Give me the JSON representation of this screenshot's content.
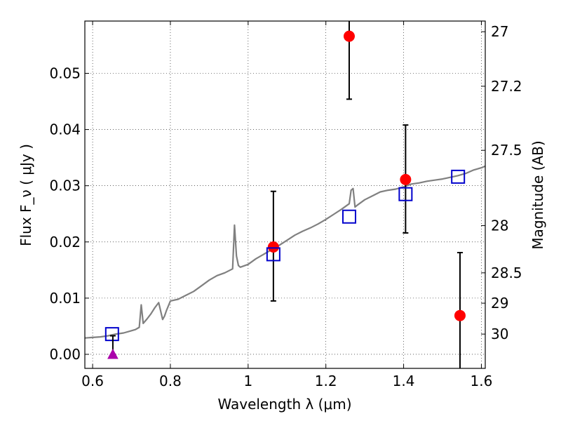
{
  "chart_data": {
    "type": "scatter",
    "xlabel": "Wavelength  λ (μm)",
    "ylabel": "Flux  F_ν  ( μJy )",
    "ylabel_right": "Magnitude (AB)",
    "xlim": [
      0.58,
      1.61
    ],
    "ylim": [
      -0.0025,
      0.0593
    ],
    "grid": true,
    "x_ticks": [
      {
        "value": 0.6,
        "label": "0.6"
      },
      {
        "value": 0.8,
        "label": "0.8"
      },
      {
        "value": 1.0,
        "label": "1"
      },
      {
        "value": 1.2,
        "label": "1.2"
      },
      {
        "value": 1.4,
        "label": "1.4"
      },
      {
        "value": 1.6,
        "label": "1.6"
      }
    ],
    "y_ticks": [
      {
        "value": 0.0,
        "label": "0.00"
      },
      {
        "value": 0.01,
        "label": "0.01"
      },
      {
        "value": 0.02,
        "label": "0.02"
      },
      {
        "value": 0.03,
        "label": "0.03"
      },
      {
        "value": 0.04,
        "label": "0.04"
      },
      {
        "value": 0.05,
        "label": "0.05"
      }
    ],
    "right_ticks": [
      {
        "flux": 0.0574,
        "label": "27"
      },
      {
        "flux": 0.0477,
        "label": "27.2"
      },
      {
        "flux": 0.0363,
        "label": "27.5"
      },
      {
        "flux": 0.0229,
        "label": "28"
      },
      {
        "flux": 0.0145,
        "label": "28.5"
      },
      {
        "flux": 0.0091,
        "label": "29"
      },
      {
        "flux": 0.0036,
        "label": "30"
      }
    ],
    "series": [
      {
        "kind": "line",
        "color": "#808080",
        "x": [
          0.58,
          0.6,
          0.62,
          0.64,
          0.66,
          0.68,
          0.7,
          0.71,
          0.72,
          0.725,
          0.73,
          0.74,
          0.75,
          0.76,
          0.77,
          0.78,
          0.785,
          0.79,
          0.8,
          0.82,
          0.84,
          0.86,
          0.88,
          0.9,
          0.92,
          0.94,
          0.96,
          0.965,
          0.97,
          0.975,
          0.98,
          1.0,
          1.02,
          1.04,
          1.06,
          1.08,
          1.1,
          1.12,
          1.14,
          1.16,
          1.18,
          1.2,
          1.22,
          1.24,
          1.26,
          1.265,
          1.27,
          1.275,
          1.28,
          1.3,
          1.32,
          1.34,
          1.36,
          1.38,
          1.4,
          1.42,
          1.44,
          1.46,
          1.48,
          1.5,
          1.52,
          1.54,
          1.56,
          1.58,
          1.6,
          1.61
        ],
        "y": [
          0.0029,
          0.003,
          0.0031,
          0.0033,
          0.0036,
          0.0038,
          0.0042,
          0.0044,
          0.0048,
          0.0088,
          0.0055,
          0.0063,
          0.0072,
          0.0083,
          0.0092,
          0.0062,
          0.0068,
          0.0078,
          0.0095,
          0.0098,
          0.0105,
          0.0112,
          0.0122,
          0.0132,
          0.014,
          0.0145,
          0.0152,
          0.023,
          0.0175,
          0.0158,
          0.0155,
          0.016,
          0.017,
          0.0178,
          0.0186,
          0.0194,
          0.0203,
          0.0212,
          0.0219,
          0.0225,
          0.0232,
          0.024,
          0.0249,
          0.0258,
          0.0268,
          0.0292,
          0.0295,
          0.0262,
          0.0265,
          0.0275,
          0.0282,
          0.0289,
          0.0292,
          0.0294,
          0.0298,
          0.0303,
          0.0305,
          0.0308,
          0.031,
          0.0312,
          0.0315,
          0.0318,
          0.0322,
          0.0328,
          0.0332,
          0.0335
        ]
      },
      {
        "kind": "points",
        "marker": "circle",
        "color": "#ff0000",
        "x": [
          1.065,
          1.26,
          1.405,
          1.545
        ],
        "y": [
          0.0191,
          0.0566,
          0.0311,
          0.0069
        ],
        "yerr_low": [
          0.0096,
          0.0112,
          0.0095,
          0.0095
        ],
        "yerr_high": [
          0.0099,
          0.0035,
          0.0097,
          0.0112
        ]
      },
      {
        "kind": "points",
        "marker": "square-open",
        "color": "#0000cc",
        "x": [
          0.65,
          1.065,
          1.26,
          1.405,
          1.54
        ],
        "y": [
          0.0036,
          0.0178,
          0.0245,
          0.0285,
          0.0316
        ]
      },
      {
        "kind": "points",
        "marker": "triangle",
        "color": "#aa00aa",
        "x": [
          0.652
        ],
        "y": [
          0.0
        ],
        "yerr_low": [
          0.0
        ],
        "yerr_high": [
          0.0033
        ]
      }
    ]
  }
}
